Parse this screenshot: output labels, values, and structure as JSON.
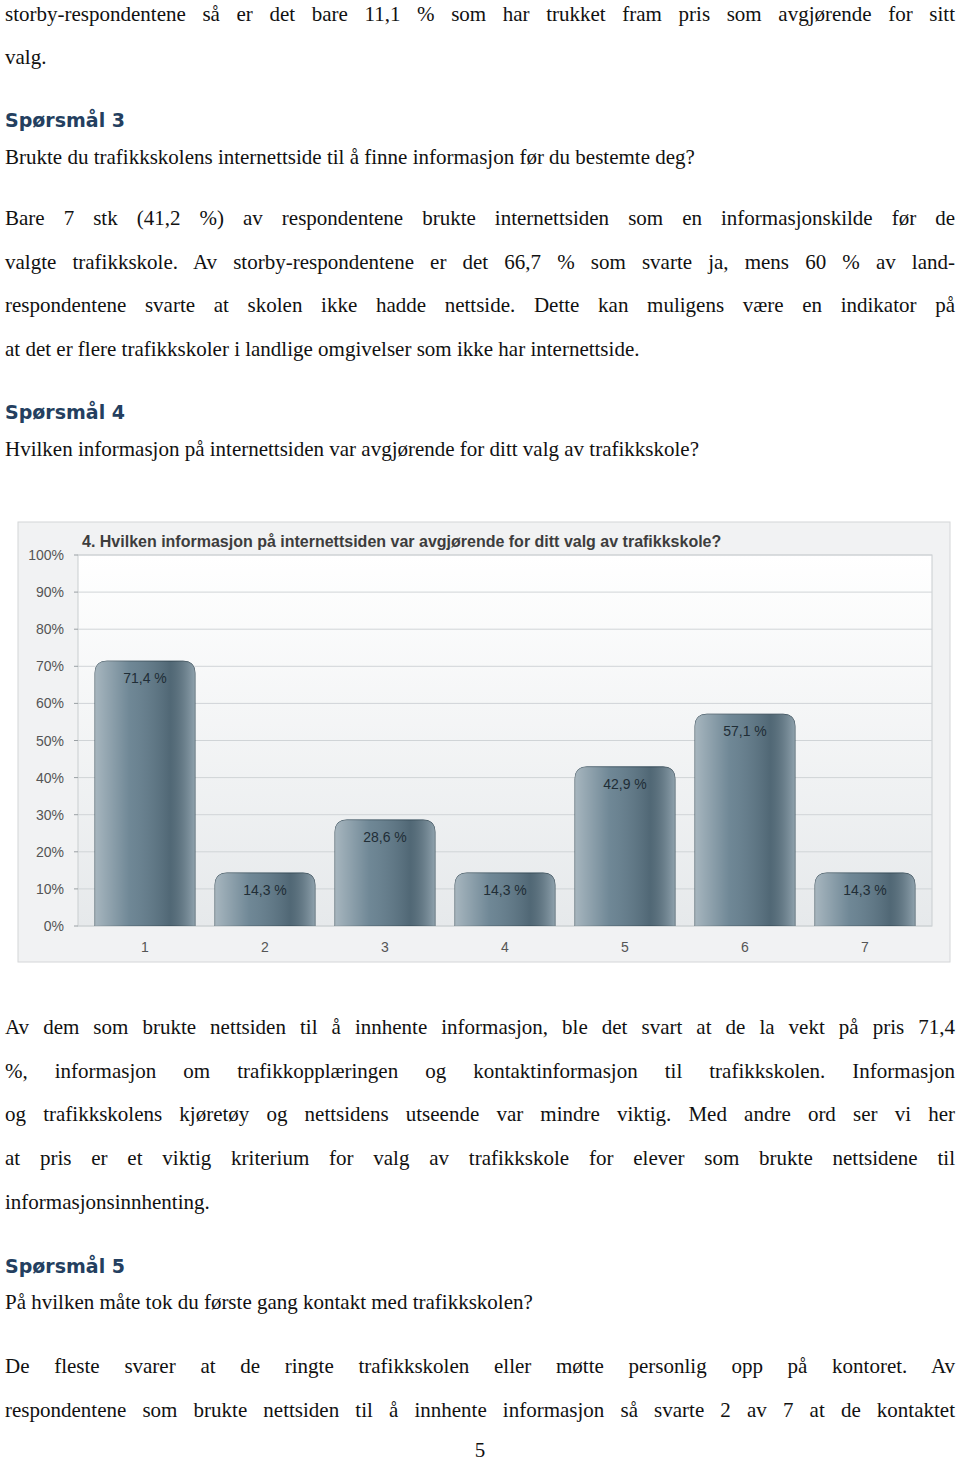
{
  "page": {
    "intro_lines": [
      "storby-respondentene så er det bare 11,1 % som har trukket fram pris som avgjørende for sitt",
      "valg."
    ],
    "q3": {
      "heading": "Spørsmål 3",
      "question": "Brukte du trafikkskolens internettside til å finne informasjon før du bestemte deg?",
      "lines": [
        "Bare 7 stk (41,2 %) av respondentene brukte internettsiden som en informasjonskilde før de",
        "valgte trafikkskole. Av storby-respondentene er det 66,7 % som svarte ja, mens 60 % av land-",
        "respondentene svarte at skolen ikke hadde nettside. Dette kan muligens være en indikator på",
        "at det er flere trafikkskoler i landlige omgivelser som ikke har internettside."
      ]
    },
    "q4": {
      "heading": "Spørsmål 4",
      "question": "Hvilken informasjon på internettsiden var avgjørende for ditt valg av trafikkskole?",
      "lines": [
        "Av dem som brukte nettsiden til å innhente informasjon, ble det svart at de la vekt på pris 71,4",
        "%, informasjon om trafikkopplæringen og kontaktinformasjon til trafikkskolen. Informasjon",
        "og trafikkskolens kjøretøy og nettsidens utseende var mindre viktig. Med andre ord ser vi her",
        "at pris er et viktig kriterium for valg av trafikkskole for elever som brukte nettsidene til",
        "informasjonsinnhenting."
      ]
    },
    "q5": {
      "heading": "Spørsmål 5",
      "question": "På hvilken måte tok du første gang kontakt med trafikkskolen?",
      "lines": [
        "De fleste svarer at de ringte trafikkskolen eller møtte personlig opp på kontoret. Av",
        "respondentene som brukte nettsiden til å innhente informasjon så svarte 2 av 7 at de kontaktet"
      ]
    },
    "page_number": "5"
  },
  "chart_data": {
    "type": "bar",
    "title": "4. Hvilken informasjon på internettsiden var avgjørende for ditt valg av trafikkskole?",
    "categories": [
      "1",
      "2",
      "3",
      "4",
      "5",
      "6",
      "7"
    ],
    "values": [
      71.4,
      14.3,
      28.6,
      14.3,
      42.9,
      57.1,
      14.3
    ],
    "value_labels": [
      "71,4 %",
      "14,3 %",
      "28,6 %",
      "14,3 %",
      "42,9 %",
      "57,1 %",
      "14,3 %"
    ],
    "color": "#5f7a8a",
    "ylim": [
      0,
      100
    ],
    "yticks": [
      {
        "value": 0,
        "label": "0%"
      },
      {
        "value": 10,
        "label": "10%"
      },
      {
        "value": 20,
        "label": "20%"
      },
      {
        "value": 30,
        "label": "30%"
      },
      {
        "value": 40,
        "label": "40%"
      },
      {
        "value": 50,
        "label": "50%"
      },
      {
        "value": 60,
        "label": "60%"
      },
      {
        "value": 70,
        "label": "70%"
      },
      {
        "value": 80,
        "label": "80%"
      },
      {
        "value": 90,
        "label": "90%"
      },
      {
        "value": 100,
        "label": "100%"
      }
    ],
    "grid": true,
    "data_labels": true
  }
}
